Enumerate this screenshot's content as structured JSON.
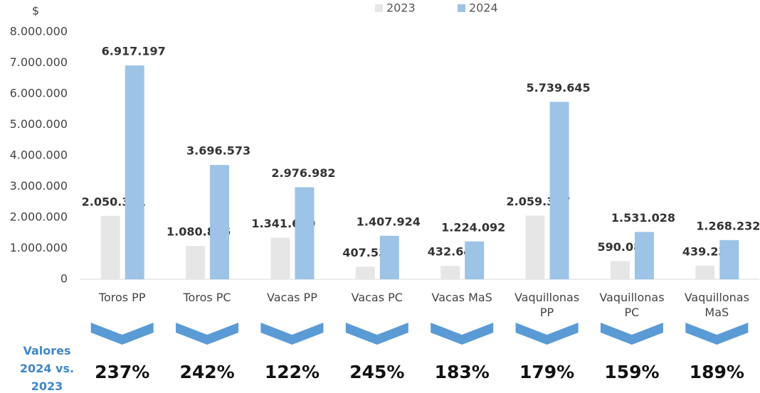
{
  "chart_data": {
    "type": "bar",
    "y_label": "$",
    "categories": [
      "Toros PP",
      "Toros PC",
      "Vacas PP",
      "Vacas PC",
      "Vacas MaS",
      "Vaquillonas PP",
      "Vaquillonas PC",
      "Vaquillonas MaS"
    ],
    "series": [
      {
        "name": "2023",
        "color": "#e6e6e6",
        "values": [
          2050301,
          1080816,
          1341659,
          407531,
          432643,
          2059387,
          590080,
          439238
        ],
        "value_labels": [
          "2.050.301",
          "1.080.816",
          "1.341.659",
          "407.531",
          "432.643",
          "2.059.387",
          "590.080",
          "439.238"
        ]
      },
      {
        "name": "2024",
        "color": "#9dc3e6",
        "values": [
          6917197,
          3696573,
          2976982,
          1407924,
          1224092,
          5739645,
          1531028,
          1268232
        ],
        "value_labels": [
          "6.917.197",
          "3.696.573",
          "2.976.982",
          "1.407.924",
          "1.224.092",
          "5.739.645",
          "1.531.028",
          "1.268.232"
        ]
      }
    ],
    "ylim": [
      0,
      8000000
    ],
    "yticks": [
      0,
      {
        "value": 1000000,
        "label": "1.000.000"
      },
      {
        "value": 2000000,
        "label": "2.000.000"
      },
      {
        "value": 3000000,
        "label": "3.000.000"
      },
      {
        "value": 4000000,
        "label": "4.000.000"
      },
      {
        "value": 5000000,
        "label": "5.000.000"
      },
      {
        "value": 6000000,
        "label": "6.000.000"
      },
      {
        "value": 7000000,
        "label": "7.000.000"
      },
      {
        "value": 8000000,
        "label": "8.000.000"
      }
    ],
    "grid": false,
    "legend": "top",
    "growth_label": "Valores 2024 vs. 2023",
    "growth": {
      "color": "#5b9bd5",
      "values": [
        237,
        242,
        122,
        245,
        183,
        179,
        159,
        189
      ],
      "value_labels": [
        "237%",
        "242%",
        "122%",
        "245%",
        "183%",
        "179%",
        "159%",
        "189%"
      ]
    }
  }
}
